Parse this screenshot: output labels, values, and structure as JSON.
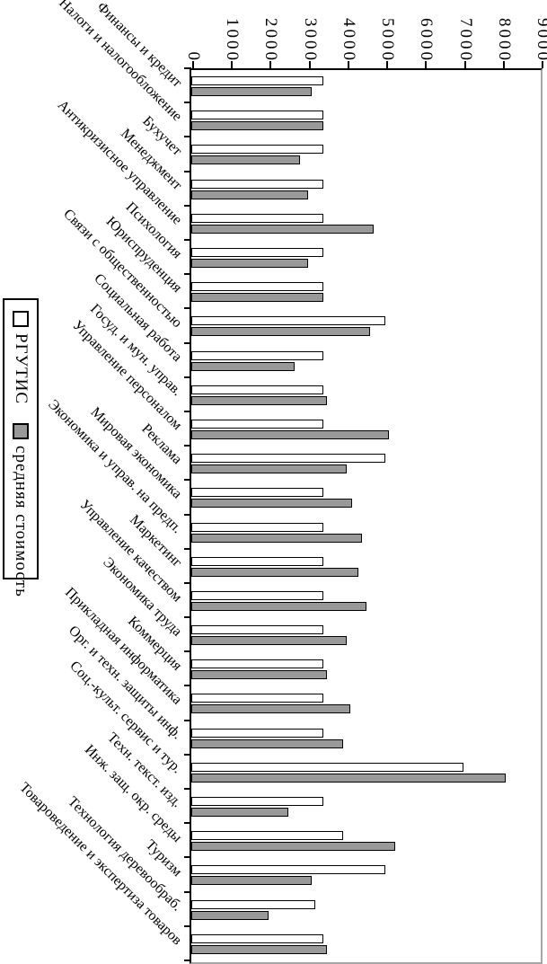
{
  "chart_data": {
    "type": "bar",
    "title": "",
    "rotation_deg": 90,
    "grid": false,
    "legend_position": "bottom of landscape chart (left edge after rotation)",
    "value_axis": {
      "min": 0,
      "max": 9000,
      "step": 1000,
      "tick_labels": [
        "0",
        "1000",
        "2000",
        "3000",
        "4000",
        "5000",
        "6000",
        "7000",
        "8000",
        "9000"
      ]
    },
    "categories": [
      "Финансы и кредит",
      "Налоги и налогообложение",
      "Бухучет",
      "Менеджмент",
      "Антикризисное управление",
      "Психология",
      "Юриспруденция",
      "Связи с общественностью",
      "Социальная работа",
      "Госуд. и мун. управ.",
      "Управление персоналом",
      "Реклама",
      "Мировая экономика",
      "Экономика и управ. на предп.",
      "Маркетинг",
      "Управление качеством",
      "Экономика труда",
      "Коммерция",
      "Прикладная информатика",
      "Орг. и техн. защиты инф.",
      "Соц.-культ. сервис и тур.",
      "Техн. текст. изд.",
      "Инж. защ. окр. среды",
      "Туризм",
      "Технология деревообраб.",
      "Товароведение и экспертиза товаров"
    ],
    "series": [
      {
        "name": "РГУТИС",
        "fill": "#ffffff",
        "values": [
          3400,
          3400,
          3400,
          3400,
          3400,
          3400,
          3400,
          5000,
          3400,
          3400,
          3400,
          5000,
          3400,
          3400,
          3400,
          3400,
          3400,
          3400,
          3400,
          3400,
          7000,
          3400,
          3900,
          5000,
          3200,
          3400
        ]
      },
      {
        "name": "средняя стоимость",
        "fill": "#999999",
        "values": [
          3100,
          3400,
          2800,
          3000,
          4700,
          3000,
          3400,
          4600,
          2650,
          3500,
          5100,
          4000,
          4150,
          4400,
          4300,
          4500,
          4000,
          3500,
          4100,
          3900,
          8100,
          2500,
          5250,
          3100,
          2000,
          3500
        ]
      }
    ],
    "colors": {
      "axis": "#000000",
      "bar_border": "#000000",
      "plot_far_border": "#a6a6a6"
    }
  }
}
